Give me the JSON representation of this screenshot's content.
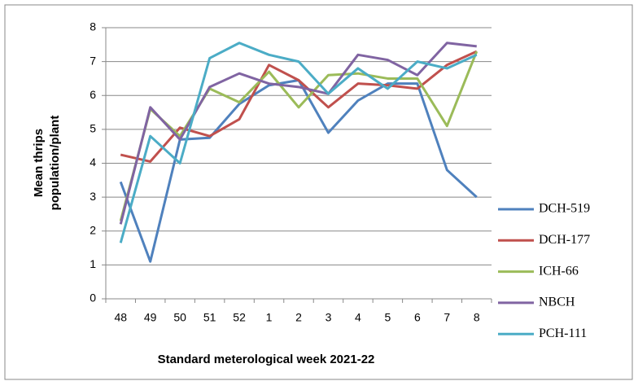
{
  "chart_data": {
    "type": "line",
    "y_label": [
      "Mean thrips",
      "population/plant"
    ],
    "x_label": "Standard meterological week 2021-22",
    "categories": [
      "48",
      "49",
      "50",
      "51",
      "52",
      "1",
      "2",
      "3",
      "4",
      "5",
      "6",
      "7",
      "8"
    ],
    "series": [
      {
        "name": "DCH-519",
        "color": "#4f81bd",
        "values": [
          3.45,
          1.1,
          4.7,
          4.75,
          5.75,
          6.3,
          6.45,
          4.9,
          5.85,
          6.35,
          6.35,
          3.8,
          3.0
        ]
      },
      {
        "name": "DCH-177",
        "color": "#c0504d",
        "values": [
          4.25,
          4.05,
          5.05,
          4.8,
          5.3,
          6.9,
          6.45,
          5.65,
          6.35,
          6.3,
          6.2,
          6.9,
          7.3
        ]
      },
      {
        "name": "ICH-66",
        "color": "#9bbb59",
        "values": [
          2.3,
          5.6,
          4.8,
          6.2,
          5.8,
          6.7,
          5.65,
          6.6,
          6.65,
          6.5,
          6.5,
          5.1,
          7.3
        ]
      },
      {
        "name": "NBCH",
        "color": "#8064a2",
        "values": [
          2.2,
          5.65,
          4.7,
          6.25,
          6.65,
          6.35,
          6.25,
          6.05,
          7.2,
          7.05,
          6.6,
          7.55,
          7.45
        ]
      },
      {
        "name": "PCH-111",
        "color": "#4bacc6",
        "values": [
          1.65,
          4.8,
          4.0,
          7.1,
          7.55,
          7.2,
          7.0,
          6.05,
          6.8,
          6.2,
          7.0,
          6.8,
          7.2
        ]
      }
    ],
    "ylim": [
      0,
      8
    ],
    "yticks": [
      0,
      1,
      2,
      3,
      4,
      5,
      6,
      7,
      8
    ],
    "grid": true,
    "legend": "right"
  }
}
